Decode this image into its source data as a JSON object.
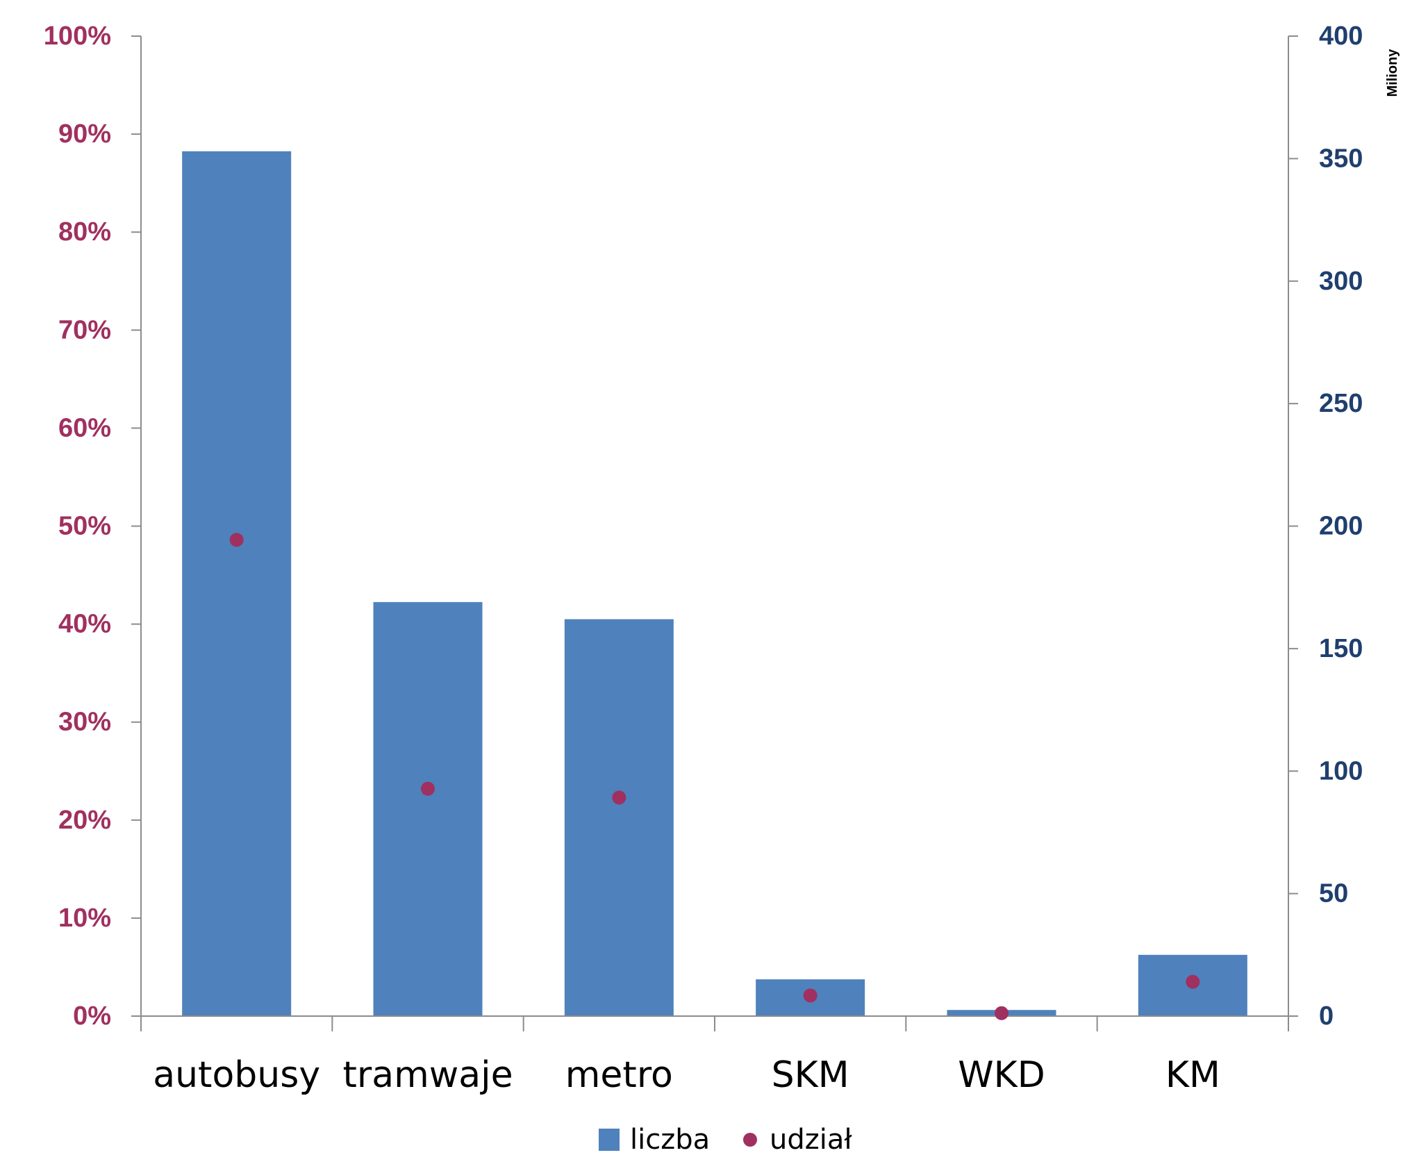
{
  "chart_data": {
    "type": "bar",
    "categories": [
      "autobusy",
      "tramwaje",
      "metro",
      "SKM",
      "WKD",
      "KM"
    ],
    "series": [
      {
        "name": "liczba",
        "kind": "bar",
        "axis": "right",
        "color": "#4F81BD",
        "values": [
          353,
          169,
          162,
          15,
          2.5,
          25
        ]
      },
      {
        "name": "udział",
        "kind": "scatter",
        "axis": "left",
        "color": "#A0305F",
        "values": [
          0.486,
          0.232,
          0.223,
          0.021,
          0.003,
          0.035
        ]
      }
    ],
    "y_left": {
      "ylim": [
        0,
        1
      ],
      "ticks": [
        0,
        0.1,
        0.2,
        0.3,
        0.4,
        0.5,
        0.6,
        0.7,
        0.8,
        0.9,
        1.0
      ],
      "tick_labels": [
        "0%",
        "10%",
        "20%",
        "30%",
        "40%",
        "50%",
        "60%",
        "70%",
        "80%",
        "90%",
        "100%"
      ],
      "color": "#A0305F"
    },
    "y_right": {
      "ylim": [
        0,
        400
      ],
      "ticks": [
        0,
        50,
        100,
        150,
        200,
        250,
        300,
        350,
        400
      ],
      "tick_labels": [
        "0",
        "50",
        "100",
        "150",
        "200",
        "250",
        "300",
        "350",
        "400"
      ],
      "unit_label": "Miliony",
      "color": "#1F3F6E"
    },
    "grid": false,
    "legend": {
      "position": "bottom-center",
      "items": [
        "liczba",
        "udział"
      ]
    },
    "axis_color": "#8C8C8C"
  }
}
